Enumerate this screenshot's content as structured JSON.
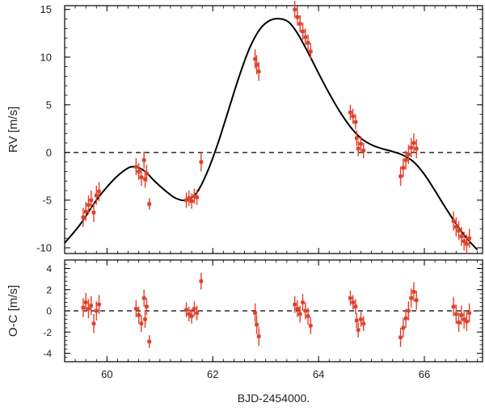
{
  "chart_data": [
    {
      "type": "scatter",
      "panel": "radial-velocity",
      "xlabel": "",
      "ylabel": "RV [m/s]",
      "xlim": [
        59.2,
        67.1
      ],
      "ylim": [
        -10.6,
        15.4
      ],
      "y_ticks": [
        -10,
        -5,
        0,
        5,
        10,
        15
      ],
      "y_tick_labels": [
        "-10",
        "-5",
        "0",
        "5",
        "10",
        "15"
      ],
      "x_ticks": [
        60,
        62,
        64,
        66
      ],
      "reference_line": 0,
      "point_color": "#e0402a",
      "model_color": "#000000",
      "model": {
        "x": [
          59.2,
          59.5,
          59.8,
          60.1,
          60.35,
          60.5,
          60.7,
          60.9,
          61.1,
          61.3,
          61.5,
          61.7,
          61.9,
          62.1,
          62.3,
          62.5,
          62.7,
          62.9,
          63.1,
          63.3,
          63.45,
          63.6,
          63.8,
          64.0,
          64.2,
          64.4,
          64.6,
          64.8,
          65.0,
          65.2,
          65.4,
          65.6,
          65.8,
          66.0,
          66.2,
          66.4,
          66.6,
          66.8,
          67.0
        ],
        "y": [
          -9.5,
          -7.5,
          -5.0,
          -3.0,
          -1.8,
          -1.5,
          -1.9,
          -3.0,
          -4.0,
          -4.8,
          -5.0,
          -4.2,
          -2.0,
          1.0,
          4.5,
          8.0,
          11.0,
          13.0,
          13.9,
          14.0,
          13.6,
          12.5,
          10.5,
          8.3,
          6.2,
          4.3,
          2.7,
          1.5,
          0.8,
          0.4,
          0.1,
          -0.3,
          -1.0,
          -2.3,
          -4.0,
          -5.8,
          -7.5,
          -9.0,
          -10.2
        ]
      },
      "points": [
        {
          "x": 59.55,
          "y": -6.8,
          "err": 1.0
        },
        {
          "x": 59.6,
          "y": -6.2,
          "err": 1.0
        },
        {
          "x": 59.65,
          "y": -5.5,
          "err": 1.0
        },
        {
          "x": 59.7,
          "y": -5.0,
          "err": 1.0
        },
        {
          "x": 59.75,
          "y": -6.3,
          "err": 1.0
        },
        {
          "x": 59.8,
          "y": -4.5,
          "err": 1.0
        },
        {
          "x": 59.85,
          "y": -4.1,
          "err": 1.0
        },
        {
          "x": 60.55,
          "y": -1.5,
          "err": 0.9
        },
        {
          "x": 60.6,
          "y": -2.0,
          "err": 0.9
        },
        {
          "x": 60.65,
          "y": -2.6,
          "err": 0.9
        },
        {
          "x": 60.7,
          "y": -0.8,
          "err": 0.9
        },
        {
          "x": 60.72,
          "y": -2.8,
          "err": 0.9
        },
        {
          "x": 60.75,
          "y": -2.2,
          "err": 0.9
        },
        {
          "x": 60.8,
          "y": -5.4,
          "err": 0.6
        },
        {
          "x": 61.5,
          "y": -5.0,
          "err": 0.8
        },
        {
          "x": 61.55,
          "y": -4.8,
          "err": 0.8
        },
        {
          "x": 61.6,
          "y": -5.1,
          "err": 0.8
        },
        {
          "x": 61.65,
          "y": -4.6,
          "err": 0.8
        },
        {
          "x": 61.7,
          "y": -4.7,
          "err": 0.8
        },
        {
          "x": 61.78,
          "y": -1.0,
          "err": 1.0
        },
        {
          "x": 62.8,
          "y": 9.8,
          "err": 1.0
        },
        {
          "x": 62.83,
          "y": 9.2,
          "err": 1.0
        },
        {
          "x": 62.87,
          "y": 8.5,
          "err": 1.0
        },
        {
          "x": 63.55,
          "y": 15.0,
          "err": 0.9
        },
        {
          "x": 63.6,
          "y": 14.2,
          "err": 0.9
        },
        {
          "x": 63.65,
          "y": 13.5,
          "err": 0.9
        },
        {
          "x": 63.7,
          "y": 12.7,
          "err": 0.9
        },
        {
          "x": 63.75,
          "y": 12.1,
          "err": 0.9
        },
        {
          "x": 63.8,
          "y": 11.5,
          "err": 0.9
        },
        {
          "x": 63.85,
          "y": 10.6,
          "err": 0.9
        },
        {
          "x": 64.6,
          "y": 4.2,
          "err": 0.8
        },
        {
          "x": 64.65,
          "y": 3.8,
          "err": 0.8
        },
        {
          "x": 64.7,
          "y": 3.2,
          "err": 0.8
        },
        {
          "x": 64.72,
          "y": 1.5,
          "err": 0.8
        },
        {
          "x": 64.75,
          "y": 0.4,
          "err": 0.8
        },
        {
          "x": 64.8,
          "y": 0.9,
          "err": 0.8
        },
        {
          "x": 64.85,
          "y": 0.2,
          "err": 0.8
        },
        {
          "x": 65.55,
          "y": -2.5,
          "err": 1.0
        },
        {
          "x": 65.6,
          "y": -1.6,
          "err": 1.0
        },
        {
          "x": 65.65,
          "y": -0.8,
          "err": 1.0
        },
        {
          "x": 65.7,
          "y": -0.2,
          "err": 1.0
        },
        {
          "x": 65.75,
          "y": 0.5,
          "err": 1.0
        },
        {
          "x": 65.8,
          "y": 1.0,
          "err": 1.0
        },
        {
          "x": 65.85,
          "y": 0.4,
          "err": 1.0
        },
        {
          "x": 66.55,
          "y": -7.2,
          "err": 1.0
        },
        {
          "x": 66.6,
          "y": -7.8,
          "err": 1.0
        },
        {
          "x": 66.65,
          "y": -8.2,
          "err": 1.0
        },
        {
          "x": 66.7,
          "y": -8.8,
          "err": 1.0
        },
        {
          "x": 66.75,
          "y": -9.3,
          "err": 1.0
        },
        {
          "x": 66.8,
          "y": -9.6,
          "err": 1.0
        },
        {
          "x": 66.85,
          "y": -9.0,
          "err": 1.0
        }
      ]
    },
    {
      "type": "scatter",
      "panel": "residuals",
      "xlabel": "BJD-2454000.",
      "ylabel": "O-C [m/s]",
      "xlim": [
        59.2,
        67.1
      ],
      "ylim": [
        -4.8,
        4.8
      ],
      "y_ticks": [
        -4,
        -2,
        0,
        2,
        4
      ],
      "y_tick_labels": [
        "-4",
        "-2",
        "0",
        "2",
        "4"
      ],
      "x_ticks": [
        60,
        62,
        64,
        66
      ],
      "x_tick_labels": [
        "60",
        "62",
        "64",
        "66"
      ],
      "reference_line": 0,
      "point_color": "#e0402a",
      "points": [
        {
          "x": 59.55,
          "y": 0.3,
          "err": 0.9
        },
        {
          "x": 59.6,
          "y": 0.8,
          "err": 0.9
        },
        {
          "x": 59.65,
          "y": 0.2,
          "err": 0.9
        },
        {
          "x": 59.7,
          "y": 0.5,
          "err": 0.9
        },
        {
          "x": 59.75,
          "y": -1.2,
          "err": 0.9
        },
        {
          "x": 59.8,
          "y": 0.0,
          "err": 0.9
        },
        {
          "x": 59.85,
          "y": 0.6,
          "err": 0.9
        },
        {
          "x": 60.55,
          "y": 0.2,
          "err": 0.8
        },
        {
          "x": 60.6,
          "y": -0.4,
          "err": 0.8
        },
        {
          "x": 60.65,
          "y": -1.2,
          "err": 0.8
        },
        {
          "x": 60.7,
          "y": 1.2,
          "err": 0.8
        },
        {
          "x": 60.72,
          "y": -0.8,
          "err": 0.8
        },
        {
          "x": 60.75,
          "y": 0.4,
          "err": 0.8
        },
        {
          "x": 60.8,
          "y": -2.9,
          "err": 0.6
        },
        {
          "x": 61.5,
          "y": 0.1,
          "err": 0.7
        },
        {
          "x": 61.55,
          "y": -0.3,
          "err": 0.7
        },
        {
          "x": 61.6,
          "y": -0.5,
          "err": 0.7
        },
        {
          "x": 61.65,
          "y": 0.2,
          "err": 0.7
        },
        {
          "x": 61.7,
          "y": -0.2,
          "err": 0.7
        },
        {
          "x": 61.78,
          "y": 2.8,
          "err": 0.8
        },
        {
          "x": 62.8,
          "y": -0.2,
          "err": 0.9
        },
        {
          "x": 62.83,
          "y": -1.3,
          "err": 0.9
        },
        {
          "x": 62.87,
          "y": -2.4,
          "err": 0.9
        },
        {
          "x": 63.55,
          "y": 0.6,
          "err": 0.8
        },
        {
          "x": 63.6,
          "y": 0.2,
          "err": 0.8
        },
        {
          "x": 63.65,
          "y": -0.3,
          "err": 0.8
        },
        {
          "x": 63.7,
          "y": 0.8,
          "err": 0.8
        },
        {
          "x": 63.75,
          "y": 0.0,
          "err": 0.8
        },
        {
          "x": 63.8,
          "y": -0.5,
          "err": 0.8
        },
        {
          "x": 63.85,
          "y": -1.4,
          "err": 0.8
        },
        {
          "x": 64.6,
          "y": 1.2,
          "err": 0.7
        },
        {
          "x": 64.65,
          "y": 0.8,
          "err": 0.7
        },
        {
          "x": 64.7,
          "y": 0.4,
          "err": 0.7
        },
        {
          "x": 64.72,
          "y": -0.9,
          "err": 0.7
        },
        {
          "x": 64.75,
          "y": -1.8,
          "err": 0.7
        },
        {
          "x": 64.8,
          "y": -0.8,
          "err": 0.7
        },
        {
          "x": 64.85,
          "y": -1.2,
          "err": 0.7
        },
        {
          "x": 65.55,
          "y": -2.5,
          "err": 0.9
        },
        {
          "x": 65.6,
          "y": -1.6,
          "err": 0.9
        },
        {
          "x": 65.65,
          "y": -0.7,
          "err": 0.9
        },
        {
          "x": 65.7,
          "y": 0.0,
          "err": 0.9
        },
        {
          "x": 65.75,
          "y": 1.2,
          "err": 0.9
        },
        {
          "x": 65.8,
          "y": 1.8,
          "err": 0.9
        },
        {
          "x": 65.85,
          "y": 1.0,
          "err": 0.9
        },
        {
          "x": 66.55,
          "y": 0.4,
          "err": 0.9
        },
        {
          "x": 66.6,
          "y": -0.3,
          "err": 0.9
        },
        {
          "x": 66.65,
          "y": -1.1,
          "err": 0.9
        },
        {
          "x": 66.7,
          "y": -0.4,
          "err": 0.9
        },
        {
          "x": 66.75,
          "y": -0.8,
          "err": 0.9
        },
        {
          "x": 66.8,
          "y": -1.0,
          "err": 0.9
        },
        {
          "x": 66.85,
          "y": -0.2,
          "err": 0.9
        }
      ]
    }
  ]
}
